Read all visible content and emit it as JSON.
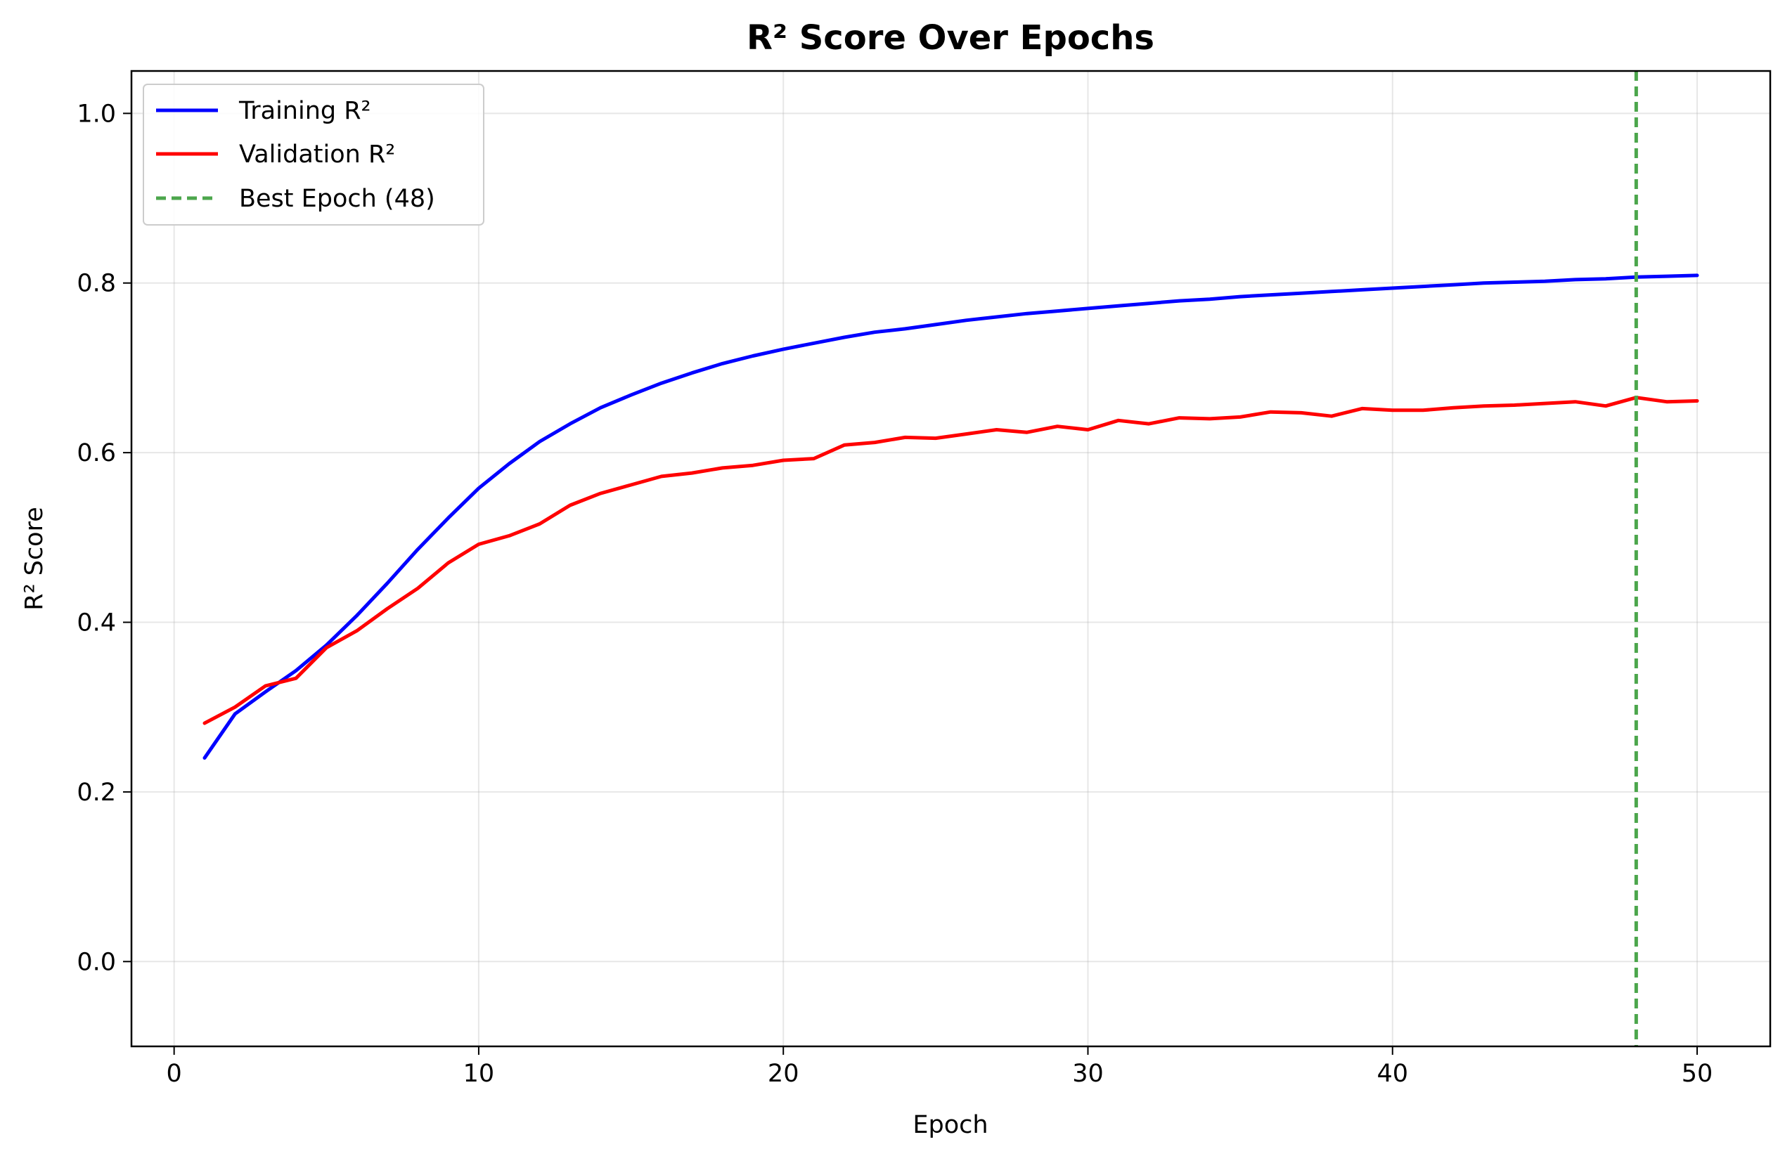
{
  "chart_data": {
    "type": "line",
    "title": "R² Score Over Epochs",
    "xlabel": "Epoch",
    "ylabel": "R² Score",
    "xlim": [
      -1.4,
      52.4
    ],
    "ylim": [
      -0.1,
      1.05
    ],
    "xticks": [
      0,
      10,
      20,
      30,
      40,
      50
    ],
    "yticks": [
      0.0,
      0.2,
      0.4,
      0.6,
      0.8,
      1.0
    ],
    "xtick_labels": [
      "0",
      "10",
      "20",
      "30",
      "40",
      "50"
    ],
    "ytick_labels": [
      "0.0",
      "0.2",
      "0.4",
      "0.6",
      "0.8",
      "1.0"
    ],
    "grid": true,
    "legend_position": "top-left",
    "x": [
      1,
      2,
      3,
      4,
      5,
      6,
      7,
      8,
      9,
      10,
      11,
      12,
      13,
      14,
      15,
      16,
      17,
      18,
      19,
      20,
      21,
      22,
      23,
      24,
      25,
      26,
      27,
      28,
      29,
      30,
      31,
      32,
      33,
      34,
      35,
      36,
      37,
      38,
      39,
      40,
      41,
      42,
      43,
      44,
      45,
      46,
      47,
      48,
      49,
      50
    ],
    "series": [
      {
        "name": "Training R²",
        "color": "#0000ff",
        "style": "solid",
        "values": [
          0.24,
          0.292,
          0.318,
          0.343,
          0.373,
          0.408,
          0.446,
          0.486,
          0.523,
          0.558,
          0.587,
          0.613,
          0.634,
          0.653,
          0.668,
          0.682,
          0.694,
          0.705,
          0.714,
          0.722,
          0.729,
          0.736,
          0.742,
          0.746,
          0.751,
          0.756,
          0.76,
          0.764,
          0.767,
          0.77,
          0.773,
          0.776,
          0.779,
          0.781,
          0.784,
          0.786,
          0.788,
          0.79,
          0.792,
          0.794,
          0.796,
          0.798,
          0.8,
          0.801,
          0.802,
          0.804,
          0.805,
          0.807,
          0.808,
          0.809
        ]
      },
      {
        "name": "Validation R²",
        "color": "#ff0000",
        "style": "solid",
        "values": [
          0.281,
          0.3,
          0.325,
          0.334,
          0.37,
          0.39,
          0.416,
          0.44,
          0.47,
          0.492,
          0.502,
          0.516,
          0.538,
          0.552,
          0.562,
          0.572,
          0.576,
          0.582,
          0.585,
          0.591,
          0.593,
          0.609,
          0.612,
          0.618,
          0.617,
          0.622,
          0.627,
          0.624,
          0.631,
          0.627,
          0.638,
          0.634,
          0.641,
          0.64,
          0.642,
          0.648,
          0.647,
          0.643,
          0.652,
          0.65,
          0.65,
          0.653,
          0.655,
          0.656,
          0.658,
          0.66,
          0.655,
          0.665,
          0.66,
          0.661
        ]
      }
    ],
    "vline": {
      "name": "Best Epoch (48)",
      "x": 48,
      "color": "#4ca64c",
      "style": "dashed"
    }
  }
}
